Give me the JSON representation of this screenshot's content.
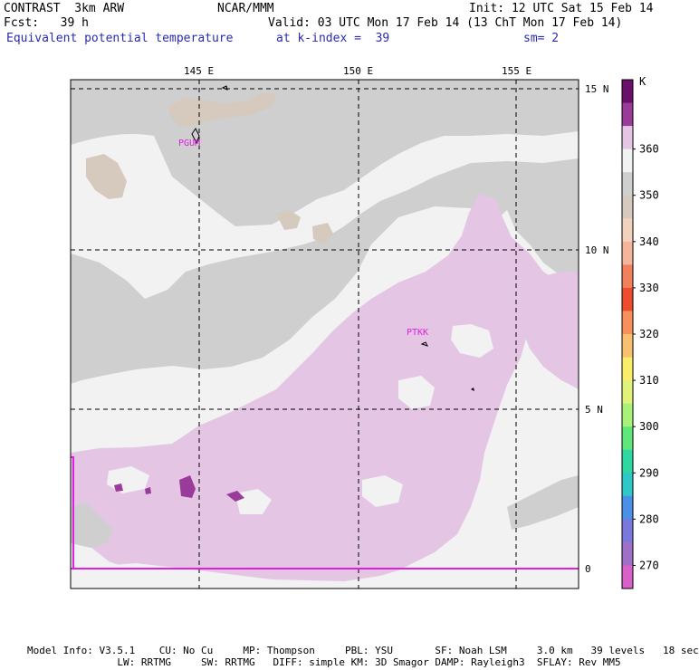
{
  "header": {
    "left_line1": "CONTRAST  3km ARW",
    "left_line2": "Fcst:   39 h",
    "center_line1": "NCAR/MMM",
    "right_line1": "Init: 12 UTC Sat 15 Feb 14",
    "center_line2": "Valid: 03 UTC Mon 17 Feb 14 (13 ChT Mon 17 Feb 14)",
    "field_name": "Equivalent potential temperature",
    "level": "at k-index =  39",
    "smoothing": "sm= 2"
  },
  "map": {
    "lon_labels": [
      "145 E",
      "150 E",
      "155 E"
    ],
    "lat_labels": [
      "15 N",
      "10 N",
      "5 N",
      "0"
    ],
    "stations": [
      "PGUM",
      "PTKK"
    ]
  },
  "legend": {
    "unit": "K",
    "labels": [
      "360",
      "350",
      "340",
      "330",
      "320",
      "310",
      "300",
      "290",
      "280",
      "270"
    ],
    "colors": [
      "#6a0f6a",
      "#9a3b9a",
      "#e4c6e4",
      "#f2f2f2",
      "#cfcfcf",
      "#d6c9be",
      "#f0d2bd",
      "#f3b69b",
      "#f2805a",
      "#ee4c2c",
      "#f8905c",
      "#f9c070",
      "#f8ee6a",
      "#e0f27a",
      "#a8f27a",
      "#5ee87a",
      "#2ed8a0",
      "#2ec8c8",
      "#4a90e6",
      "#7a78dc",
      "#a070c8",
      "#d860c8"
    ]
  },
  "footer": {
    "line1": "Model Info: V3.5.1    CU: No Cu     MP: Thompson     PBL: YSU       SF: Noah LSM     3.0 km   39 levels   18 sec",
    "line2": "               LW: RRTMG     SW: RRTMG   DIFF: simple KM: 3D Smagor DAMP: Rayleigh3  SFLAY: Rev MM5"
  }
}
